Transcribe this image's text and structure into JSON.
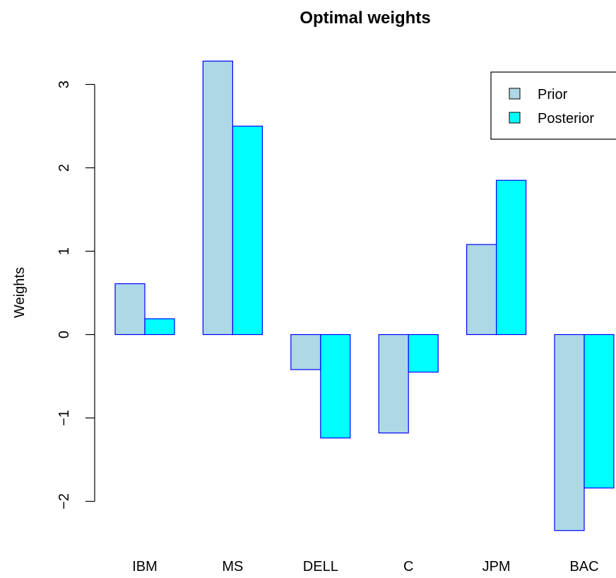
{
  "chart_data": {
    "type": "bar",
    "title": "Optimal weights",
    "xlabel": "",
    "ylabel": "Weights",
    "categories": [
      "IBM",
      "MS",
      "DELL",
      "C",
      "JPM",
      "BAC"
    ],
    "series": [
      {
        "name": "Prior",
        "values": [
          0.61,
          3.28,
          -0.42,
          -1.18,
          1.08,
          -2.35
        ],
        "color": "#add8e6"
      },
      {
        "name": "Posterior",
        "values": [
          0.19,
          2.5,
          -1.24,
          -0.45,
          1.85,
          -1.84
        ],
        "color": "#00ffff"
      }
    ],
    "bar_border_color": "#0000ff",
    "yticks": [
      -2,
      -1,
      0,
      1,
      2,
      3
    ],
    "ytick_labels": [
      "−2",
      "−1",
      "0",
      "1",
      "2",
      "3"
    ],
    "ylim": [
      -2.35,
      3.28
    ],
    "grid": false,
    "legend_position": "top-right"
  }
}
